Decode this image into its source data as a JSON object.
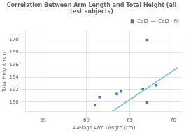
{
  "chart_data": {
    "type": "scatter",
    "title": "Correlation Between Arm Length and Total Height (all test subjects)",
    "xlabel": "Average Arm Length (cm)",
    "ylabel": "Total Height (cm)",
    "series": [
      {
        "name": "Col2",
        "type": "scatter",
        "color": "#4472c4",
        "marker": "square",
        "x": [
          61.0,
          61.5,
          63.5,
          64.0,
          66.5,
          67.0,
          68.0,
          67.0
        ],
        "values": [
          159.5,
          160.8,
          161.3,
          161.7,
          162.1,
          159.9,
          162.7,
          170.0
        ]
      },
      {
        "name": "Col2 - fit",
        "type": "line",
        "color": "#70b8d4",
        "line_style": "solid",
        "x": [
          63.0,
          70.5
        ],
        "values": [
          158.5,
          165.5
        ]
      }
    ],
    "xlim": [
      53,
      71
    ],
    "ylim": [
      158.5,
      171.5
    ],
    "xticks": [
      55,
      60,
      65,
      70
    ],
    "yticks": [
      160,
      162,
      164,
      166,
      168,
      170
    ],
    "grid": true,
    "legend": "upper right"
  }
}
